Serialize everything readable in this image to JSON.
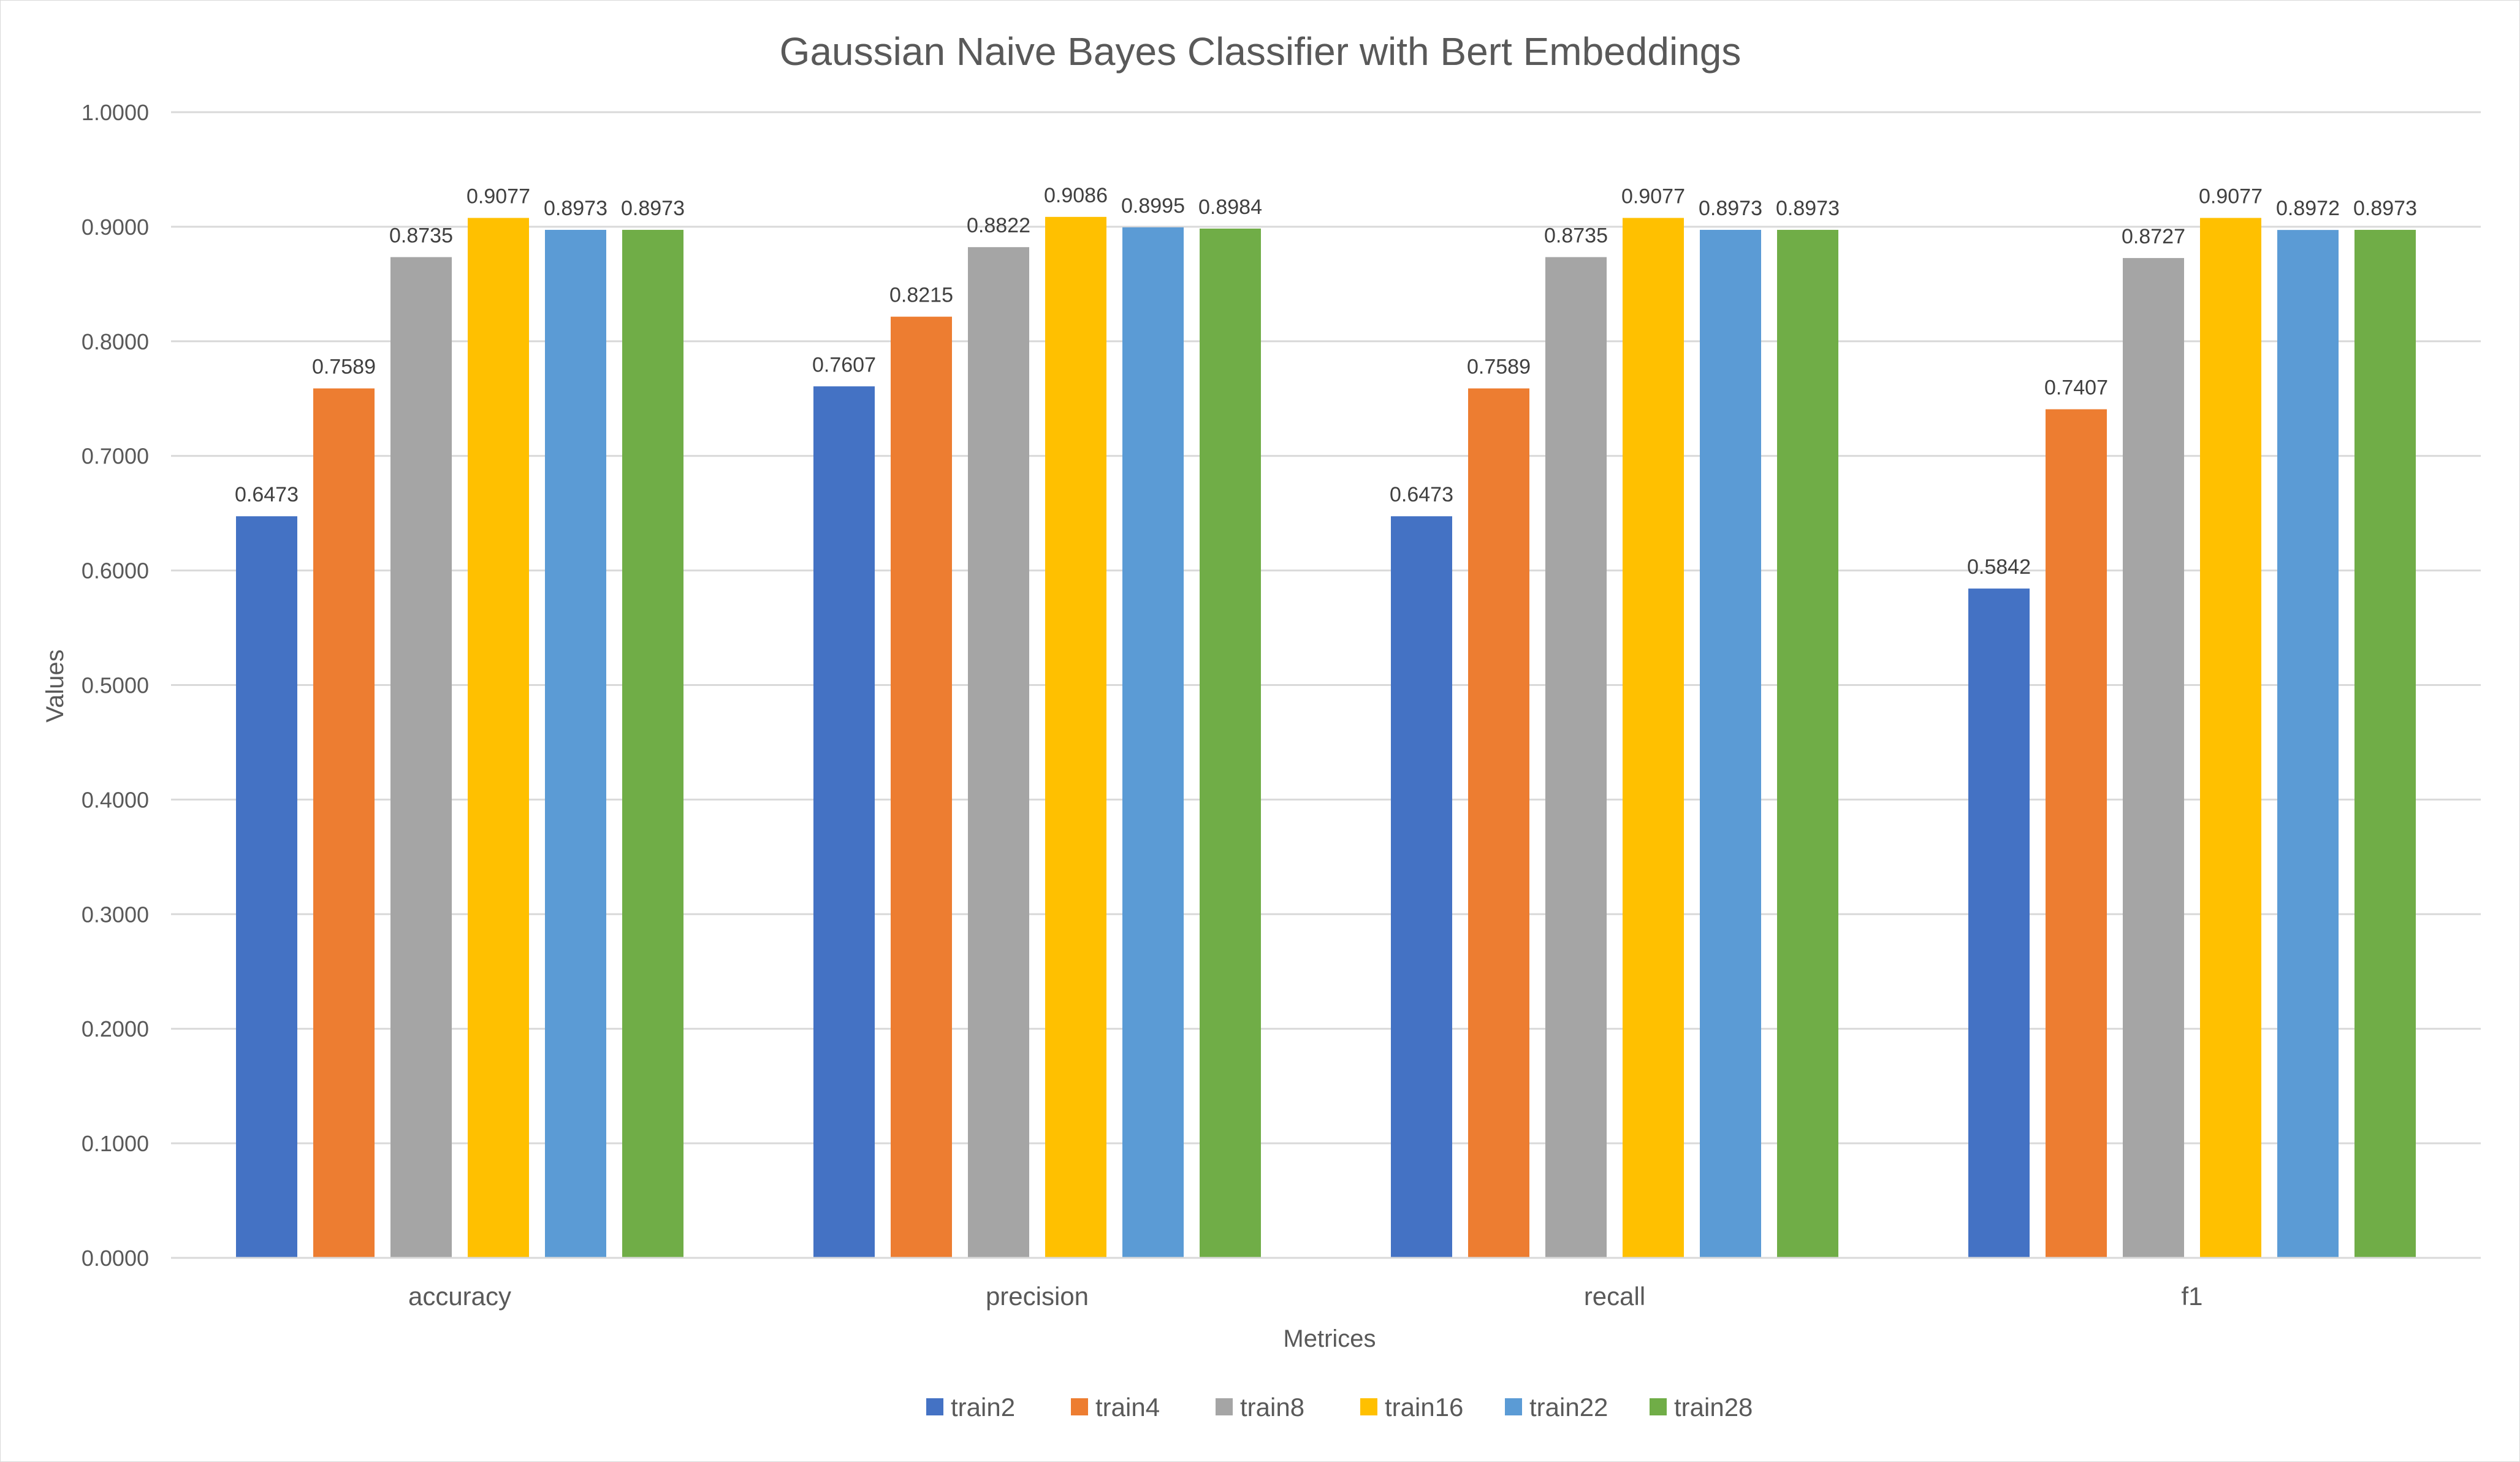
{
  "chart_data": {
    "type": "bar",
    "title": "Gaussian Naive Bayes Classifier with Bert Embeddings",
    "xlabel": "Metrices",
    "ylabel": "Values",
    "ylim": [
      0,
      1
    ],
    "y_ticks": [
      "0.0000",
      "0.1000",
      "0.2000",
      "0.3000",
      "0.4000",
      "0.5000",
      "0.6000",
      "0.7000",
      "0.8000",
      "0.9000",
      "1.0000"
    ],
    "y_tick_values": [
      0,
      0.1,
      0.2,
      0.3,
      0.4,
      0.5,
      0.6,
      0.7,
      0.8,
      0.9,
      1.0
    ],
    "categories": [
      "accuracy",
      "precision",
      "recall",
      "f1"
    ],
    "grid": true,
    "legend_position": "bottom",
    "series": [
      {
        "name": "train2",
        "color": "#4472C4",
        "values": [
          0.6473,
          0.7607,
          0.6473,
          0.5842
        ],
        "labels": [
          "0.6473",
          "0.7607",
          "0.6473",
          "0.5842"
        ]
      },
      {
        "name": "train4",
        "color": "#ED7D31",
        "values": [
          0.7589,
          0.8215,
          0.7589,
          0.7407
        ],
        "labels": [
          "0.7589",
          "0.8215",
          "0.7589",
          "0.7407"
        ]
      },
      {
        "name": "train8",
        "color": "#A5A5A5",
        "values": [
          0.8735,
          0.8822,
          0.8735,
          0.8727
        ],
        "labels": [
          "0.8735",
          "0.8822",
          "0.8735",
          "0.8727"
        ]
      },
      {
        "name": "train16",
        "color": "#FFC000",
        "values": [
          0.9077,
          0.9086,
          0.9077,
          0.9077
        ],
        "labels": [
          "0.9077",
          "0.9086",
          "0.9077",
          "0.9077"
        ]
      },
      {
        "name": "train22",
        "color": "#5B9BD5",
        "values": [
          0.8973,
          0.8995,
          0.8973,
          0.8972
        ],
        "labels": [
          "0.8973",
          "0.8995",
          "0.8973",
          "0.8972"
        ]
      },
      {
        "name": "train28",
        "color": "#70AD47",
        "values": [
          0.8973,
          0.8984,
          0.8973,
          0.8973
        ],
        "labels": [
          "0.8973",
          "0.8984",
          "0.8973",
          "0.8973"
        ]
      }
    ]
  }
}
